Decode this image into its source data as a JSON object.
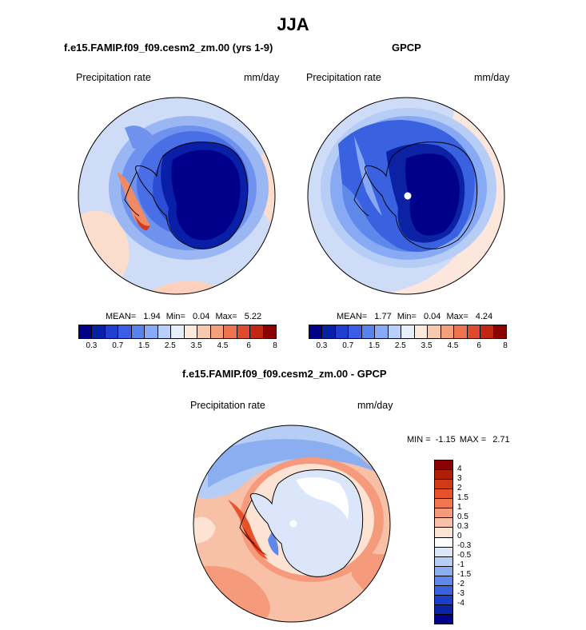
{
  "figure": {
    "title": "JJA"
  },
  "panels": [
    {
      "title": "f.e15.FAMIP.f09_f09.cesm2_zm.00 (yrs 1-9)",
      "left_label": "Precipitation rate",
      "right_label": "mm/day",
      "stats": {
        "mean_label": "MEAN=",
        "mean": "1.94",
        "min_label": "Min=",
        "min": "0.04",
        "max_label": "Max=",
        "max": "5.22"
      }
    },
    {
      "title": "GPCP",
      "left_label": "Precipitation rate",
      "right_label": "mm/day",
      "stats": {
        "mean_label": "MEAN=",
        "mean": "1.77",
        "min_label": "Min=",
        "min": "0.04",
        "max_label": "Max=",
        "max": "4.24"
      }
    },
    {
      "title": "f.e15.FAMIP.f09_f09.cesm2_zm.00 - GPCP",
      "left_label": "Precipitation rate",
      "right_label": "mm/day",
      "stats": {
        "min_label": "MIN =",
        "min": "-1.15",
        "max_label": "MAX =",
        "max": "2.71"
      }
    }
  ],
  "colorbar_precip": {
    "colors": [
      "#00008b",
      "#0a1fa8",
      "#1e3fcf",
      "#3a5fe6",
      "#5a83f0",
      "#88aaf5",
      "#b8cffa",
      "#e6eefb",
      "#fde8dc",
      "#f9c9ad",
      "#f3a07a",
      "#ec744f",
      "#dd4a2c",
      "#c02812",
      "#8b0000"
    ],
    "ticks": [
      "0.3",
      "0.7",
      "1.5",
      "2.5",
      "3.5",
      "4.5",
      "6",
      "8"
    ]
  },
  "colorbar_diff": {
    "colors": [
      "#8b0000",
      "#b01e08",
      "#d23a16",
      "#e8522b",
      "#f07650",
      "#f59a7a",
      "#f8c0a6",
      "#fde3d3",
      "#ffffff",
      "#dbe6fb",
      "#b6cdf6",
      "#8aaef0",
      "#5e88ea",
      "#3a62e0",
      "#1c3ec6",
      "#0b22a4",
      "#00008b"
    ],
    "ticks": [
      "4",
      "3",
      "2",
      "1.5",
      "1",
      "0.5",
      "0.3",
      "0",
      "-0.3",
      "-0.5",
      "-1",
      "-1.5",
      "-2",
      "-3",
      "-4"
    ]
  }
}
